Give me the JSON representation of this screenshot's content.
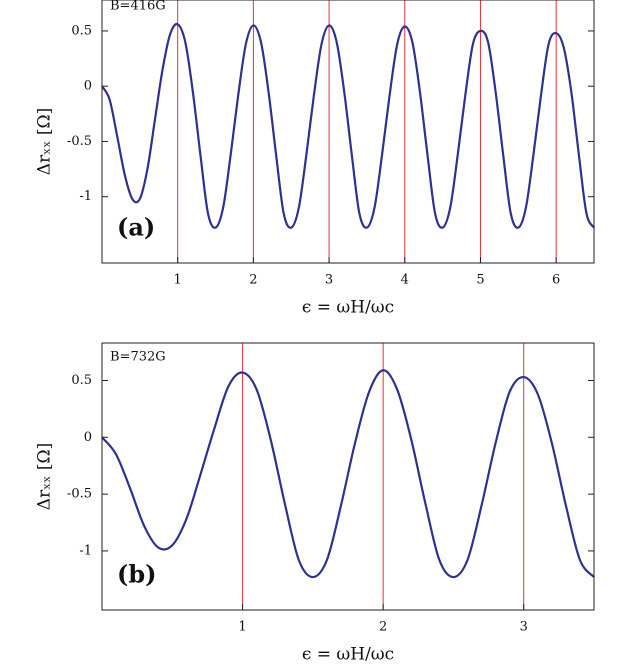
{
  "chart_data": [
    {
      "type": "line",
      "annotation": "B=416G",
      "panel_label": "(a)",
      "ylabel": "Δrₓₓ [Ω]",
      "xlabel": "ϵ = ωH/ωc",
      "xlim": [
        0,
        6.5
      ],
      "ylim": [
        -1.6,
        0.78
      ],
      "xticks": [
        1,
        2,
        3,
        4,
        5,
        6
      ],
      "yticks": [
        0.5,
        0,
        -0.5,
        -1
      ],
      "vlines": [
        1,
        2,
        3,
        4,
        5,
        6
      ],
      "vline_color": "#e8313a",
      "x": [
        0,
        0.1,
        0.2,
        0.3,
        0.4,
        0.5,
        0.6,
        0.7,
        0.8,
        0.9,
        1,
        1.1,
        1.2,
        1.3,
        1.4,
        1.5,
        1.6,
        1.7,
        1.8,
        1.9,
        2,
        2.1,
        2.2,
        2.3,
        2.4,
        2.5,
        2.6,
        2.7,
        2.8,
        2.9,
        3,
        3.1,
        3.2,
        3.3,
        3.4,
        3.5,
        3.6,
        3.7,
        3.8,
        3.9,
        4,
        4.1,
        4.2,
        4.3,
        4.4,
        4.5,
        4.6,
        4.7,
        4.8,
        4.9,
        5,
        5.1,
        5.2,
        5.3,
        5.4,
        5.5,
        5.6,
        5.7,
        5.8,
        5.9,
        6,
        6.1,
        6.2,
        6.3,
        6.4,
        6.5
      ],
      "series": [
        {
          "color": "#2e3192",
          "values": [
            0,
            -0.12,
            -0.45,
            -0.8,
            -1.02,
            -1.02,
            -0.75,
            -0.3,
            0.15,
            0.47,
            0.56,
            0.4,
            -0.05,
            -0.62,
            -1.15,
            -1.28,
            -1.1,
            -0.62,
            -0.08,
            0.38,
            0.55,
            0.4,
            -0.05,
            -0.62,
            -1.15,
            -1.28,
            -1.1,
            -0.62,
            -0.08,
            0.38,
            0.55,
            0.4,
            -0.05,
            -0.62,
            -1.15,
            -1.28,
            -1.1,
            -0.62,
            -0.08,
            0.38,
            0.54,
            0.4,
            -0.05,
            -0.62,
            -1.15,
            -1.28,
            -1.1,
            -0.62,
            -0.08,
            0.38,
            0.5,
            0.4,
            -0.05,
            -0.62,
            -1.15,
            -1.28,
            -1.1,
            -0.62,
            -0.08,
            0.38,
            0.48,
            0.35,
            -0.05,
            -0.62,
            -1.15,
            -1.28
          ]
        }
      ]
    },
    {
      "type": "line",
      "annotation": "B=732G",
      "panel_label": "(b)",
      "ylabel": "Δrₓₓ [Ω]",
      "xlabel": "ϵ = ωH/ωc",
      "xlim": [
        0,
        3.5
      ],
      "ylim": [
        -1.52,
        0.83
      ],
      "xticks": [
        1,
        2,
        3
      ],
      "yticks": [
        0.5,
        0,
        -0.5,
        -1
      ],
      "vlines": [
        1,
        2,
        3
      ],
      "vline_color": "#e8313a",
      "x": [
        0,
        0.1,
        0.2,
        0.3,
        0.4,
        0.5,
        0.6,
        0.7,
        0.8,
        0.9,
        1,
        1.1,
        1.2,
        1.3,
        1.4,
        1.5,
        1.6,
        1.7,
        1.8,
        1.9,
        2,
        2.1,
        2.2,
        2.3,
        2.4,
        2.5,
        2.6,
        2.7,
        2.8,
        2.9,
        3,
        3.1,
        3.2,
        3.3,
        3.4,
        3.5
      ],
      "series": [
        {
          "color": "#2e3192",
          "values": [
            0,
            -0.15,
            -0.45,
            -0.78,
            -0.97,
            -0.95,
            -0.72,
            -0.33,
            0.08,
            0.45,
            0.57,
            0.42,
            -0.02,
            -0.58,
            -1.08,
            -1.23,
            -1.08,
            -0.6,
            -0.05,
            0.4,
            0.59,
            0.42,
            -0.02,
            -0.58,
            -1.08,
            -1.23,
            -1.08,
            -0.6,
            -0.05,
            0.4,
            0.53,
            0.38,
            -0.05,
            -0.6,
            -1.08,
            -1.23
          ]
        }
      ]
    }
  ]
}
